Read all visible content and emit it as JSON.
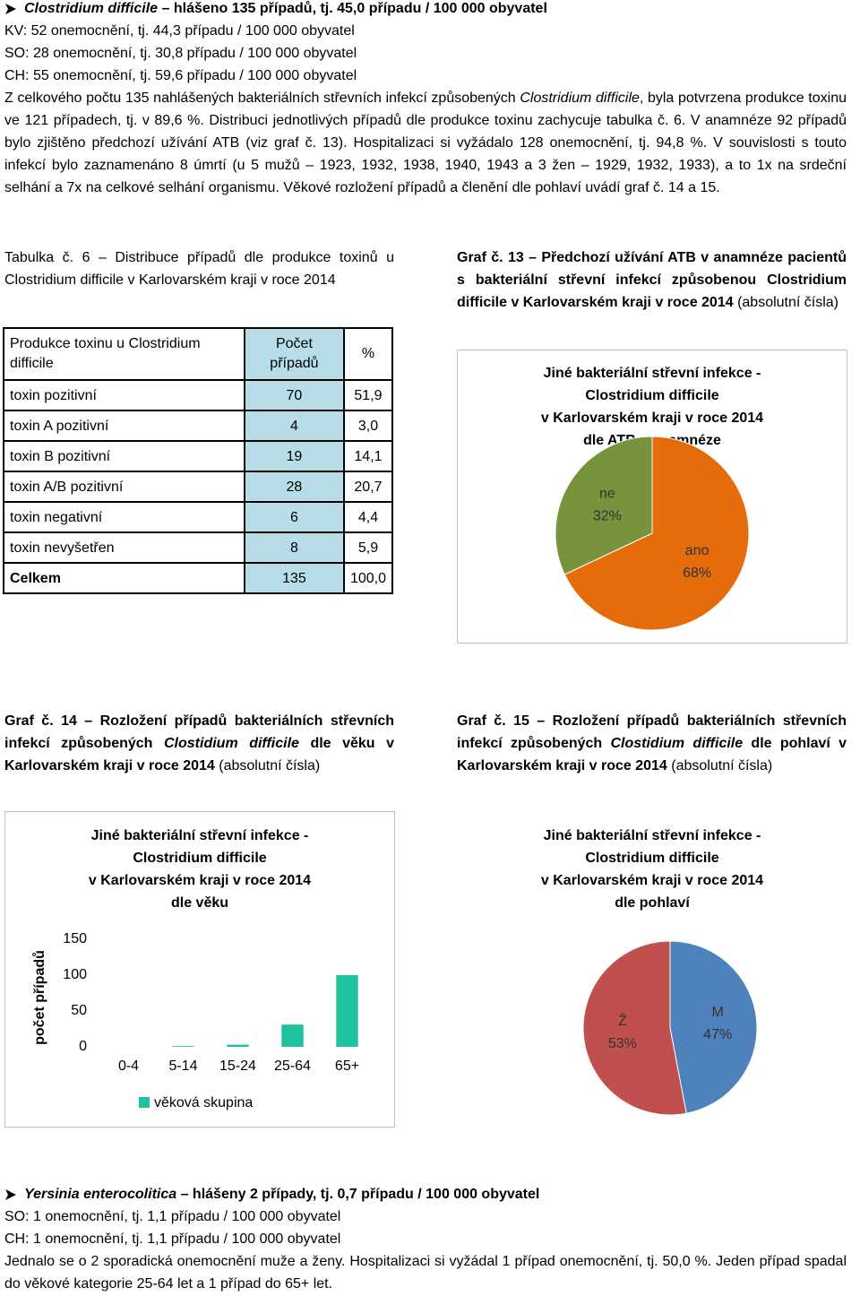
{
  "intro": {
    "heading": [
      "Clostridium difficile",
      " – hlášeno 135 případů, tj. 45,0 případu / 100 000 obyvatel"
    ],
    "lines": [
      "KV: 52 onemocnění, tj. 44,3 případu / 100 000 obyvatel",
      "SO: 28 onemocnění, tj. 30,8 případu / 100 000 obyvatel",
      "CH: 55 onemocnění, tj. 59,6 případu / 100 000 obyvatel"
    ],
    "paragraph": [
      "Z celkového počtu 135 nahlášených bakteriálních střevních infekcí způsobených ",
      "Clostridium difficile",
      ", byla potvrzena produkce toxinu ve 121 případech, tj. v 89,6 %. Distribuci jednotlivých případů dle produkce toxinu zachycuje tabulka č. 6. V anamnéze 92 případů bylo zjištěno předchozí užívání ATB (viz graf č. 13). Hospitalizaci si vyžádalo 128 onemocnění, tj. 94,8 %. V souvislosti s touto infekcí bylo zaznamenáno 8 úmrtí (u 5 mužů – 1923, 1932, 1938, 1940, 1943 a 3 žen – 1929, 1932, 1933), a to 1x na srdeční selhání a 7x na celkové selhání organismu. Věkové rozložení případů a členění dle pohlaví uvádí graf č. 14 a 15."
    ]
  },
  "table": {
    "caption": "Tabulka č. 6 – Distribuce případů dle produkce toxinů u Clostridium difficile v Karlovarském kraji v roce 2014",
    "header": [
      "Produkce toxinu u Clostridium difficile",
      "Počet případů",
      "%"
    ],
    "rows": [
      [
        "toxin pozitivní",
        "70",
        "51,9"
      ],
      [
        "toxin A pozitivní",
        "4",
        "3,0"
      ],
      [
        "toxin B pozitivní",
        "19",
        "14,1"
      ],
      [
        "toxin A/B pozitivní",
        "28",
        "20,7"
      ],
      [
        "toxin negativní",
        "6",
        "4,4"
      ],
      [
        "toxin nevyšetřen",
        "8",
        "5,9"
      ],
      [
        "Celkem",
        "135",
        "100,0"
      ]
    ]
  },
  "captions": [
    [
      "Graf č. 13 – Předchozí užívání ATB v anamnéze pacientů s bakteriální střevní infekcí způsobenou Clostridium difficile v Karlovarském kraji v roce 2014",
      " (absolutní čísla)"
    ],
    [
      "Graf č. 14 – Rozložení případů bakteriálních střevních infekcí způsobených ",
      "Clostidium difficile",
      " dle věku v Karlovarském kraji v roce 2014",
      " (absolutní čísla)"
    ],
    [
      "Graf č. 15 – Rozložení případů bakteriálních střevních infekcí způsobených ",
      "Clostidium difficile",
      " dle pohlaví v Karlovarském kraji v roce 2014",
      " (absolutní čísla)"
    ]
  ],
  "chart_data": [
    {
      "type": "pie",
      "title": [
        "Jiné bakteriální střevní infekce -",
        "Clostridium difficile",
        "v Karlovarském kraji v roce 2014",
        "dle ATB v anamnéze"
      ],
      "categories": [
        "ano",
        "ne"
      ],
      "values": [
        68,
        32
      ],
      "value_labels": [
        "68%",
        "32%"
      ],
      "colors": [
        "#e46c0a",
        "#77933c"
      ]
    },
    {
      "type": "bar",
      "title": [
        "Jiné bakteriální střevní infekce -",
        "Clostridium difficile",
        "v Karlovarském kraji v roce 2014",
        "dle věku"
      ],
      "categories": [
        "0-4",
        "5-14",
        "15-24",
        "25-64",
        "65+"
      ],
      "series": [
        {
          "name": "věková skupina",
          "color": "#1fc29c",
          "values": [
            0,
            1,
            3,
            31,
            100
          ]
        }
      ],
      "ylabel": "počet případů",
      "ylim": [
        0,
        150
      ],
      "yticks": [
        0,
        50,
        100,
        150
      ],
      "grid": false
    },
    {
      "type": "pie",
      "title": [
        "Jiné bakteriální střevní infekce -",
        "Clostridium difficile",
        "v Karlovarském kraji v roce 2014",
        "dle pohlaví"
      ],
      "categories": [
        "M",
        "Ž"
      ],
      "values": [
        47,
        53
      ],
      "value_labels": [
        "47%",
        "53%"
      ],
      "colors": [
        "#4f81bd",
        "#c0504d"
      ]
    }
  ],
  "yersinia": {
    "heading": [
      "Yersinia enterocolitica",
      " – hlášeny 2 případy, tj. 0,7 případu / 100 000 obyvatel"
    ],
    "lines": [
      "SO: 1 onemocnění, tj. 1,1 případu / 100 000 obyvatel",
      "CH: 1 onemocnění, tj. 1,1 případu / 100 000 obyvatel"
    ],
    "paragraph": "Jednalo se o 2 sporadická onemocnění muže a ženy. Hospitalizaci si vyžádal 1 případ onemocnění, tj. 50,0 %. Jeden případ spadal do věkové kategorie 25-64 let a 1 případ do 65+ let."
  }
}
